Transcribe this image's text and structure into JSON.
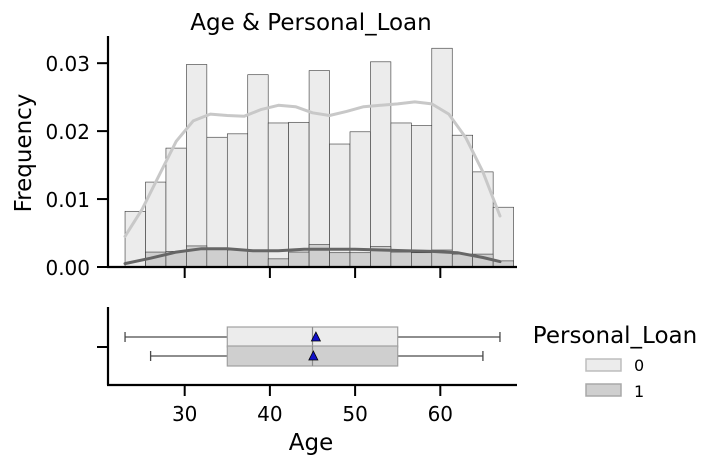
{
  "chart_data": [
    {
      "type": "histogram",
      "title": "Age & Personal_Loan",
      "xlabel": "",
      "ylabel": "Frequency",
      "xlim": [
        21,
        69
      ],
      "ylim": [
        0,
        0.034
      ],
      "x_ticks": [
        30,
        40,
        50,
        60
      ],
      "y_ticks": [
        "0.00",
        "0.01",
        "0.02",
        "0.03"
      ],
      "bin_edges": [
        23.0,
        25.4,
        27.8,
        30.2,
        32.6,
        35.0,
        37.4,
        39.8,
        42.2,
        44.6,
        47.0,
        49.4,
        51.8,
        54.2,
        56.6,
        59.0,
        61.4,
        63.8,
        66.2
      ],
      "series": [
        {
          "name": "0",
          "color": "#ececec",
          "values": [
            0.0082,
            0.0125,
            0.0175,
            0.0298,
            0.0191,
            0.0196,
            0.0283,
            0.0212,
            0.0213,
            0.0289,
            0.0181,
            0.0199,
            0.0302,
            0.0212,
            0.0208,
            0.0322,
            0.0194,
            0.014,
            0.0088
          ],
          "kde_color": "#c8c8c8",
          "kde": [
            [
              23,
              0.0045
            ],
            [
              25,
              0.0085
            ],
            [
              27,
              0.0135
            ],
            [
              29,
              0.0185
            ],
            [
              31,
              0.0215
            ],
            [
              33,
              0.0225
            ],
            [
              35,
              0.0223
            ],
            [
              37,
              0.0222
            ],
            [
              39,
              0.0232
            ],
            [
              41,
              0.0238
            ],
            [
              43,
              0.0236
            ],
            [
              45,
              0.0227
            ],
            [
              47,
              0.0223
            ],
            [
              49,
              0.0229
            ],
            [
              51,
              0.0236
            ],
            [
              53,
              0.0238
            ],
            [
              55,
              0.024
            ],
            [
              57,
              0.0243
            ],
            [
              59,
              0.024
            ],
            [
              61,
              0.0225
            ],
            [
              63,
              0.019
            ],
            [
              65,
              0.014
            ],
            [
              67,
              0.0075
            ]
          ]
        },
        {
          "name": "1",
          "color": "#cfcfcf",
          "values": [
            0.0,
            0.0022,
            0.0023,
            0.0031,
            0.0028,
            0.0025,
            0.0023,
            0.0012,
            0.0022,
            0.0033,
            0.0021,
            0.0021,
            0.003,
            0.0022,
            0.0021,
            0.0025,
            0.0019,
            0.0019,
            0.0009
          ],
          "kde_color": "#666666",
          "kde": [
            [
              23,
              0.0005
            ],
            [
              26,
              0.0013
            ],
            [
              29,
              0.0022
            ],
            [
              32,
              0.0027
            ],
            [
              35,
              0.0027
            ],
            [
              38,
              0.0024
            ],
            [
              41,
              0.0024
            ],
            [
              44,
              0.0026
            ],
            [
              47,
              0.0026
            ],
            [
              50,
              0.0026
            ],
            [
              53,
              0.0025
            ],
            [
              56,
              0.0024
            ],
            [
              59,
              0.0023
            ],
            [
              62,
              0.0021
            ],
            [
              65,
              0.0014
            ],
            [
              67,
              0.0008
            ]
          ]
        }
      ]
    },
    {
      "type": "boxplot",
      "xlabel": "Age",
      "x_ticks": [
        30,
        40,
        50,
        60
      ],
      "xlim": [
        21,
        69
      ],
      "series": [
        {
          "name": "0",
          "color": "#ececec",
          "whisker_low": 23,
          "q1": 35,
          "median": 45,
          "q3": 55,
          "whisker_high": 67,
          "mean": 45.4
        },
        {
          "name": "1",
          "color": "#cfcfcf",
          "whisker_low": 26,
          "q1": 35,
          "median": 45,
          "q3": 55,
          "whisker_high": 65,
          "mean": 45.1
        }
      ]
    }
  ],
  "legend": {
    "title": "Personal_Loan",
    "position": "right",
    "entries": [
      "0",
      "1"
    ]
  }
}
